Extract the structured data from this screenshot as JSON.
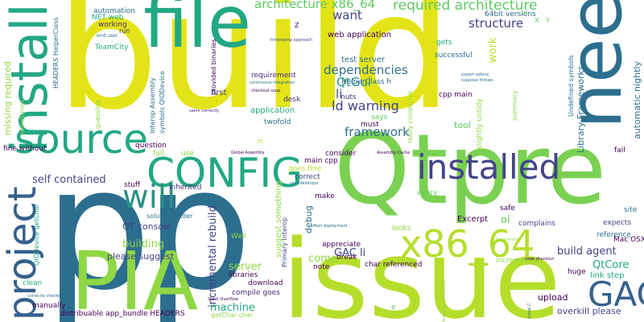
{
  "background": "#ffffff",
  "palette": {
    "yellow": "#e3e418",
    "lime": "#8fd744",
    "green": "#5ec962",
    "teal": "#22a884",
    "cyan": "#2a9086",
    "blue": "#2c6e8e",
    "steel": "#35608d",
    "indigo": "#414487",
    "purple": "#472d7b",
    "dark": "#440154"
  },
  "words": [
    {
      "text": "build",
      "color": "#e3e418"
    },
    {
      "text": "p",
      "color": "#2c6e8e"
    },
    {
      "text": "p",
      "color": "#2c6e8e"
    },
    {
      "text": "file",
      "color": "#22a884"
    },
    {
      "text": "need",
      "color": "#2c6e8e"
    },
    {
      "text": "Qtpre",
      "color": "#7ad151"
    },
    {
      "text": "PIA",
      "color": "#8fd744"
    },
    {
      "text": "issue",
      "color": "#b5de2b"
    },
    {
      "text": "install",
      "color": "#22a884"
    },
    {
      "text": "source",
      "color": "#22a884"
    },
    {
      "text": "CONFIG",
      "color": "#22a884"
    },
    {
      "text": "installed",
      "color": "#414487"
    },
    {
      "text": "x86_64",
      "color": "#b5de2b"
    },
    {
      "text": "project",
      "color": "#35608d"
    },
    {
      "text": "will",
      "color": "#2a9086"
    },
    {
      "text": "GAC",
      "color": "#35608d"
    },
    {
      "text": "architecture x86_64",
      "color": "#5ec962"
    },
    {
      "text": "required architecture",
      "color": "#5ec962"
    },
    {
      "text": "want",
      "color": "#414487"
    },
    {
      "text": "structure",
      "color": "#414487"
    },
    {
      "text": "dependencies",
      "color": "#2c6e8e"
    },
    {
      "text": "QtGui",
      "color": "#2a9086"
    },
    {
      "text": "ld warning",
      "color": "#414487"
    },
    {
      "text": "framework",
      "color": "#2c6e8e"
    },
    {
      "text": "li",
      "color": "#414487"
    },
    {
      "text": "web application",
      "color": "#440154"
    },
    {
      "text": "test server",
      "color": "#2c6e8e"
    },
    {
      "text": "HelperClass h",
      "color": "#2c6e8e"
    },
    {
      "text": "nuts",
      "color": "#472d7b"
    },
    {
      "text": "requirement",
      "color": "#472d7b"
    },
    {
      "text": "desk",
      "color": "#472d7b"
    },
    {
      "text": "application",
      "color": "#22a884"
    },
    {
      "text": "twofold",
      "color": "#2c6e8e"
    },
    {
      "text": "must",
      "color": "#440154"
    },
    {
      "text": "says",
      "color": "#5ec962"
    },
    {
      "text": "cpp main",
      "color": "#440154"
    },
    {
      "text": "tool",
      "color": "#5ec962"
    },
    {
      "text": "successful",
      "color": "#2c6e8e"
    },
    {
      "text": "gets",
      "color": "#22a884"
    },
    {
      "text": "work",
      "color": "#b5de2b"
    },
    {
      "text": "64bit versions",
      "color": "#2c6e8e"
    },
    {
      "text": "automation",
      "color": "#2c6e8e"
    },
    {
      "text": "NET web",
      "color": "#22a884"
    },
    {
      "text": "working",
      "color": "#472d7b"
    },
    {
      "text": "run",
      "color": "#472d7b"
    },
    {
      "text": "end user",
      "color": "#2c6e8e"
    },
    {
      "text": "TeamCity",
      "color": "#22a884"
    },
    {
      "text": "missing required",
      "color": "#8fd744"
    },
    {
      "text": "sometimes",
      "color": "#8fd744"
    },
    {
      "text": "HEADERS HelperClass",
      "color": "#2c6e8e"
    },
    {
      "text": "Interop Assembly",
      "color": "#2c6e8e"
    },
    {
      "text": "symbols QIODevice",
      "color": "#2c6e8e"
    },
    {
      "text": "provided binaries",
      "color": "#440154"
    },
    {
      "text": "first",
      "color": "#414487"
    },
    {
      "text": "guessing",
      "color": "#8fd744"
    },
    {
      "text": "question",
      "color": "#440154"
    },
    {
      "text": "full",
      "color": "#8fd744"
    },
    {
      "text": "use",
      "color": "#8fd744"
    },
    {
      "text": "fine without",
      "color": "#440154"
    },
    {
      "text": "self contained",
      "color": "#414487"
    },
    {
      "text": "consider",
      "color": "#440154"
    },
    {
      "text": "main cpp",
      "color": "#440154"
    },
    {
      "text": "correct",
      "color": "#414487"
    },
    {
      "text": "goes fine",
      "color": "#b5de2b"
    },
    {
      "text": "stuff",
      "color": "#440154"
    },
    {
      "text": "inherited",
      "color": "#472d7b"
    },
    {
      "text": "solution folder",
      "color": "#2c6e8e"
    },
    {
      "text": "QT console",
      "color": "#414487"
    },
    {
      "text": "building",
      "color": "#8fd744"
    },
    {
      "text": "please suggest",
      "color": "#414487"
    },
    {
      "text": "incremental rebuild",
      "color": "#414487"
    },
    {
      "text": "server",
      "color": "#8fd744"
    },
    {
      "text": "machine",
      "color": "#22a884"
    },
    {
      "text": "compile goes",
      "color": "#472d7b"
    },
    {
      "text": "libraries",
      "color": "#440154"
    },
    {
      "text": "download",
      "color": "#440154"
    },
    {
      "text": "Well",
      "color": "#8fd744"
    },
    {
      "text": "distribuable app_bundle HEADERS",
      "color": "#440154"
    },
    {
      "text": "getChar char",
      "color": "#8fd744"
    },
    {
      "text": "manually",
      "color": "#440154"
    },
    {
      "text": "clean",
      "color": "#22a884"
    },
    {
      "text": "QIODevice getChar",
      "color": "#22a884"
    },
    {
      "text": "suggest something",
      "color": "#8fd744"
    },
    {
      "text": "Primary Interop",
      "color": "#414487"
    },
    {
      "text": "debug",
      "color": "#2c6e8e"
    },
    {
      "text": "come",
      "color": "#8fd744"
    },
    {
      "text": "note",
      "color": "#440154"
    },
    {
      "text": "make",
      "color": "#440154"
    },
    {
      "text": "appreciate",
      "color": "#440154"
    },
    {
      "text": "GAC li",
      "color": "#414487"
    },
    {
      "text": "break",
      "color": "#440154"
    },
    {
      "text": "char referenced",
      "color": "#440154"
    },
    {
      "text": "looks",
      "color": "#8fd744"
    },
    {
      "text": "Excerpt",
      "color": "#440154"
    },
    {
      "text": "ol",
      "color": "#5ec962"
    },
    {
      "text": "complains",
      "color": "#414487"
    },
    {
      "text": "every",
      "color": "#5ec962"
    },
    {
      "text": "safe",
      "color": "#440154"
    },
    {
      "text": "build agent",
      "color": "#414487"
    },
    {
      "text": "QtCore",
      "color": "#22a884"
    },
    {
      "text": "link step",
      "color": "#22a884"
    },
    {
      "text": "upload",
      "color": "#440154"
    },
    {
      "text": "overkill please",
      "color": "#414487"
    },
    {
      "text": "huge",
      "color": "#440154"
    },
    {
      "text": "Mac OSX",
      "color": "#440154"
    },
    {
      "text": "reference",
      "color": "#2c6e8e"
    },
    {
      "text": "expects",
      "color": "#414487"
    },
    {
      "text": "site",
      "color": "#2c6e8e"
    },
    {
      "text": "fail",
      "color": "#440154"
    },
    {
      "text": "automatic nightly",
      "color": "#2c6e8e"
    },
    {
      "text": "Library Frameworks",
      "color": "#2c6e8e"
    },
    {
      "text": "Undefined symbols",
      "color": "#2c6e8e"
    },
    {
      "text": "slightly untidy",
      "color": "#8fd744"
    },
    {
      "text": "summary",
      "color": "#8fd744"
    },
    {
      "text": "really conducive",
      "color": "#8fd744"
    },
    {
      "text": "incremental",
      "color": "#8fd744"
    },
    {
      "text": "X",
      "color": "#5ec962"
    },
    {
      "text": "Y",
      "color": "#5ec962"
    },
    {
      "text": "Z",
      "color": "#440154"
    },
    {
      "text": "timestamp approach",
      "color": "#414487"
    },
    {
      "text": "continuous integration",
      "color": "#2c6e8e"
    },
    {
      "text": "checkout soup",
      "color": "#440154"
    },
    {
      "text": "seem correctly",
      "color": "#472d7b"
    },
    {
      "text": "Global Assembly",
      "color": "#440154"
    },
    {
      "text": "Assembly Cache",
      "color": "#440154"
    },
    {
      "text": "user desktops",
      "color": "#2c6e8e"
    },
    {
      "text": "effect deployment",
      "color": "#2c6e8e"
    },
    {
      "text": "expert advice",
      "color": "#2c6e8e"
    },
    {
      "text": "suppose throws",
      "color": "#2c6e8e"
    },
    {
      "text": "C currently",
      "color": "#8fd744"
    },
    {
      "text": "code checkout",
      "color": "#440154"
    },
    {
      "text": "correctly checked",
      "color": "#2c6e8e"
    },
    {
      "text": "Stack Overflow",
      "color": "#440154"
    },
    {
      "text": "Overflow community",
      "color": "#8fd744"
    },
    {
      "text": "visual C",
      "color": "#2c6e8e"
    },
    {
      "text": "ul",
      "color": "#5ec962"
    },
    {
      "text": "e",
      "color": "#5ec962"
    },
    {
      "text": "it",
      "color": "#b5de2b"
    }
  ]
}
